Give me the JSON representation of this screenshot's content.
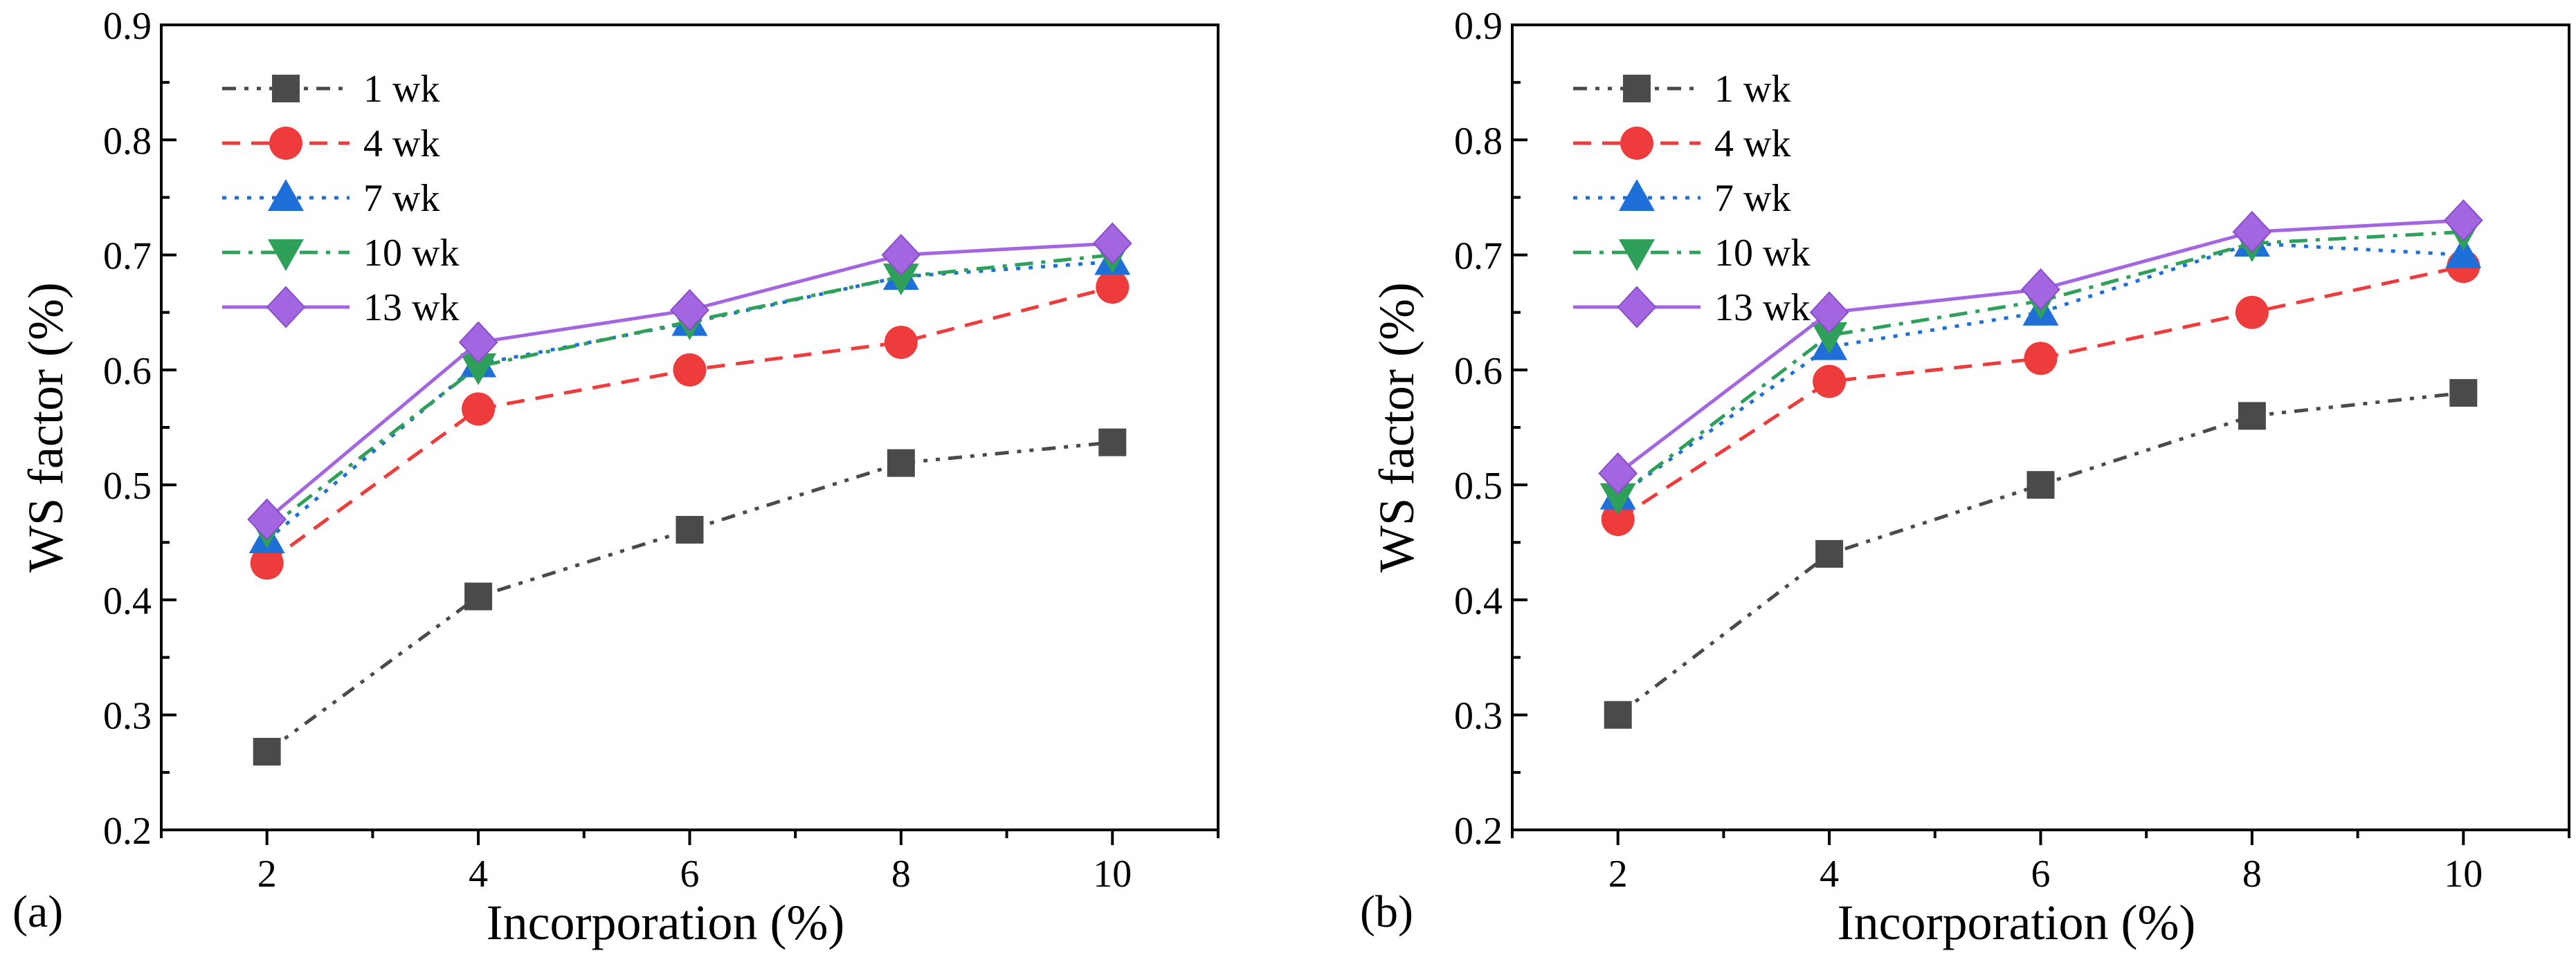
{
  "chart_data": [
    {
      "type": "line",
      "panel_label": "(a)",
      "xlabel": "Incorporation (%)",
      "ylabel": "WS factor (%)",
      "x": [
        2,
        4,
        6,
        8,
        10
      ],
      "xlim": [
        1,
        11
      ],
      "ylim": [
        0.2,
        0.9
      ],
      "xticks": [
        "2",
        "4",
        "6",
        "8",
        "10"
      ],
      "yticks": [
        "0.2",
        "0.3",
        "0.4",
        "0.5",
        "0.6",
        "0.7",
        "0.8",
        "0.9"
      ],
      "legend_position": "top-left",
      "series": [
        {
          "name": "1 wk",
          "color": "#4a4a4a",
          "marker": "square",
          "dash": "dash-dot-dot",
          "values": [
            0.268,
            0.403,
            0.461,
            0.519,
            0.537
          ]
        },
        {
          "name": "4 wk",
          "color": "#ee3b3b",
          "marker": "circle",
          "dash": "dash",
          "values": [
            0.432,
            0.566,
            0.6,
            0.624,
            0.672
          ]
        },
        {
          "name": "7 wk",
          "color": "#1f6fd8",
          "marker": "triangle-up",
          "dash": "dot",
          "values": [
            0.452,
            0.605,
            0.641,
            0.681,
            0.694
          ]
        },
        {
          "name": "10 wk",
          "color": "#2ea05a",
          "marker": "triangle-down",
          "dash": "dash-dot",
          "values": [
            0.461,
            0.603,
            0.642,
            0.681,
            0.7
          ]
        },
        {
          "name": "13 wk",
          "color": "#a466e0",
          "marker": "diamond",
          "dash": "solid",
          "values": [
            0.47,
            0.624,
            0.652,
            0.7,
            0.71
          ]
        }
      ]
    },
    {
      "type": "line",
      "panel_label": "(b)",
      "xlabel": "Incorporation (%)",
      "ylabel": "WS factor (%)",
      "x": [
        2,
        4,
        6,
        8,
        10
      ],
      "xlim": [
        1,
        11
      ],
      "ylim": [
        0.2,
        0.9
      ],
      "xticks": [
        "2",
        "4",
        "6",
        "8",
        "10"
      ],
      "yticks": [
        "0.2",
        "0.3",
        "0.4",
        "0.5",
        "0.6",
        "0.7",
        "0.8",
        "0.9"
      ],
      "legend_position": "top-left",
      "series": [
        {
          "name": "1 wk",
          "color": "#4a4a4a",
          "marker": "square",
          "dash": "dash-dot-dot",
          "values": [
            0.3,
            0.44,
            0.5,
            0.56,
            0.58
          ]
        },
        {
          "name": "4 wk",
          "color": "#ee3b3b",
          "marker": "circle",
          "dash": "dash",
          "values": [
            0.47,
            0.59,
            0.61,
            0.65,
            0.69
          ]
        },
        {
          "name": "7 wk",
          "color": "#1f6fd8",
          "marker": "triangle-up",
          "dash": "dot",
          "values": [
            0.49,
            0.62,
            0.65,
            0.71,
            0.7
          ]
        },
        {
          "name": "10 wk",
          "color": "#2ea05a",
          "marker": "triangle-down",
          "dash": "dash-dot",
          "values": [
            0.49,
            0.63,
            0.66,
            0.71,
            0.72
          ]
        },
        {
          "name": "13 wk",
          "color": "#a466e0",
          "marker": "diamond",
          "dash": "solid",
          "values": [
            0.51,
            0.65,
            0.67,
            0.72,
            0.73
          ]
        }
      ]
    }
  ]
}
